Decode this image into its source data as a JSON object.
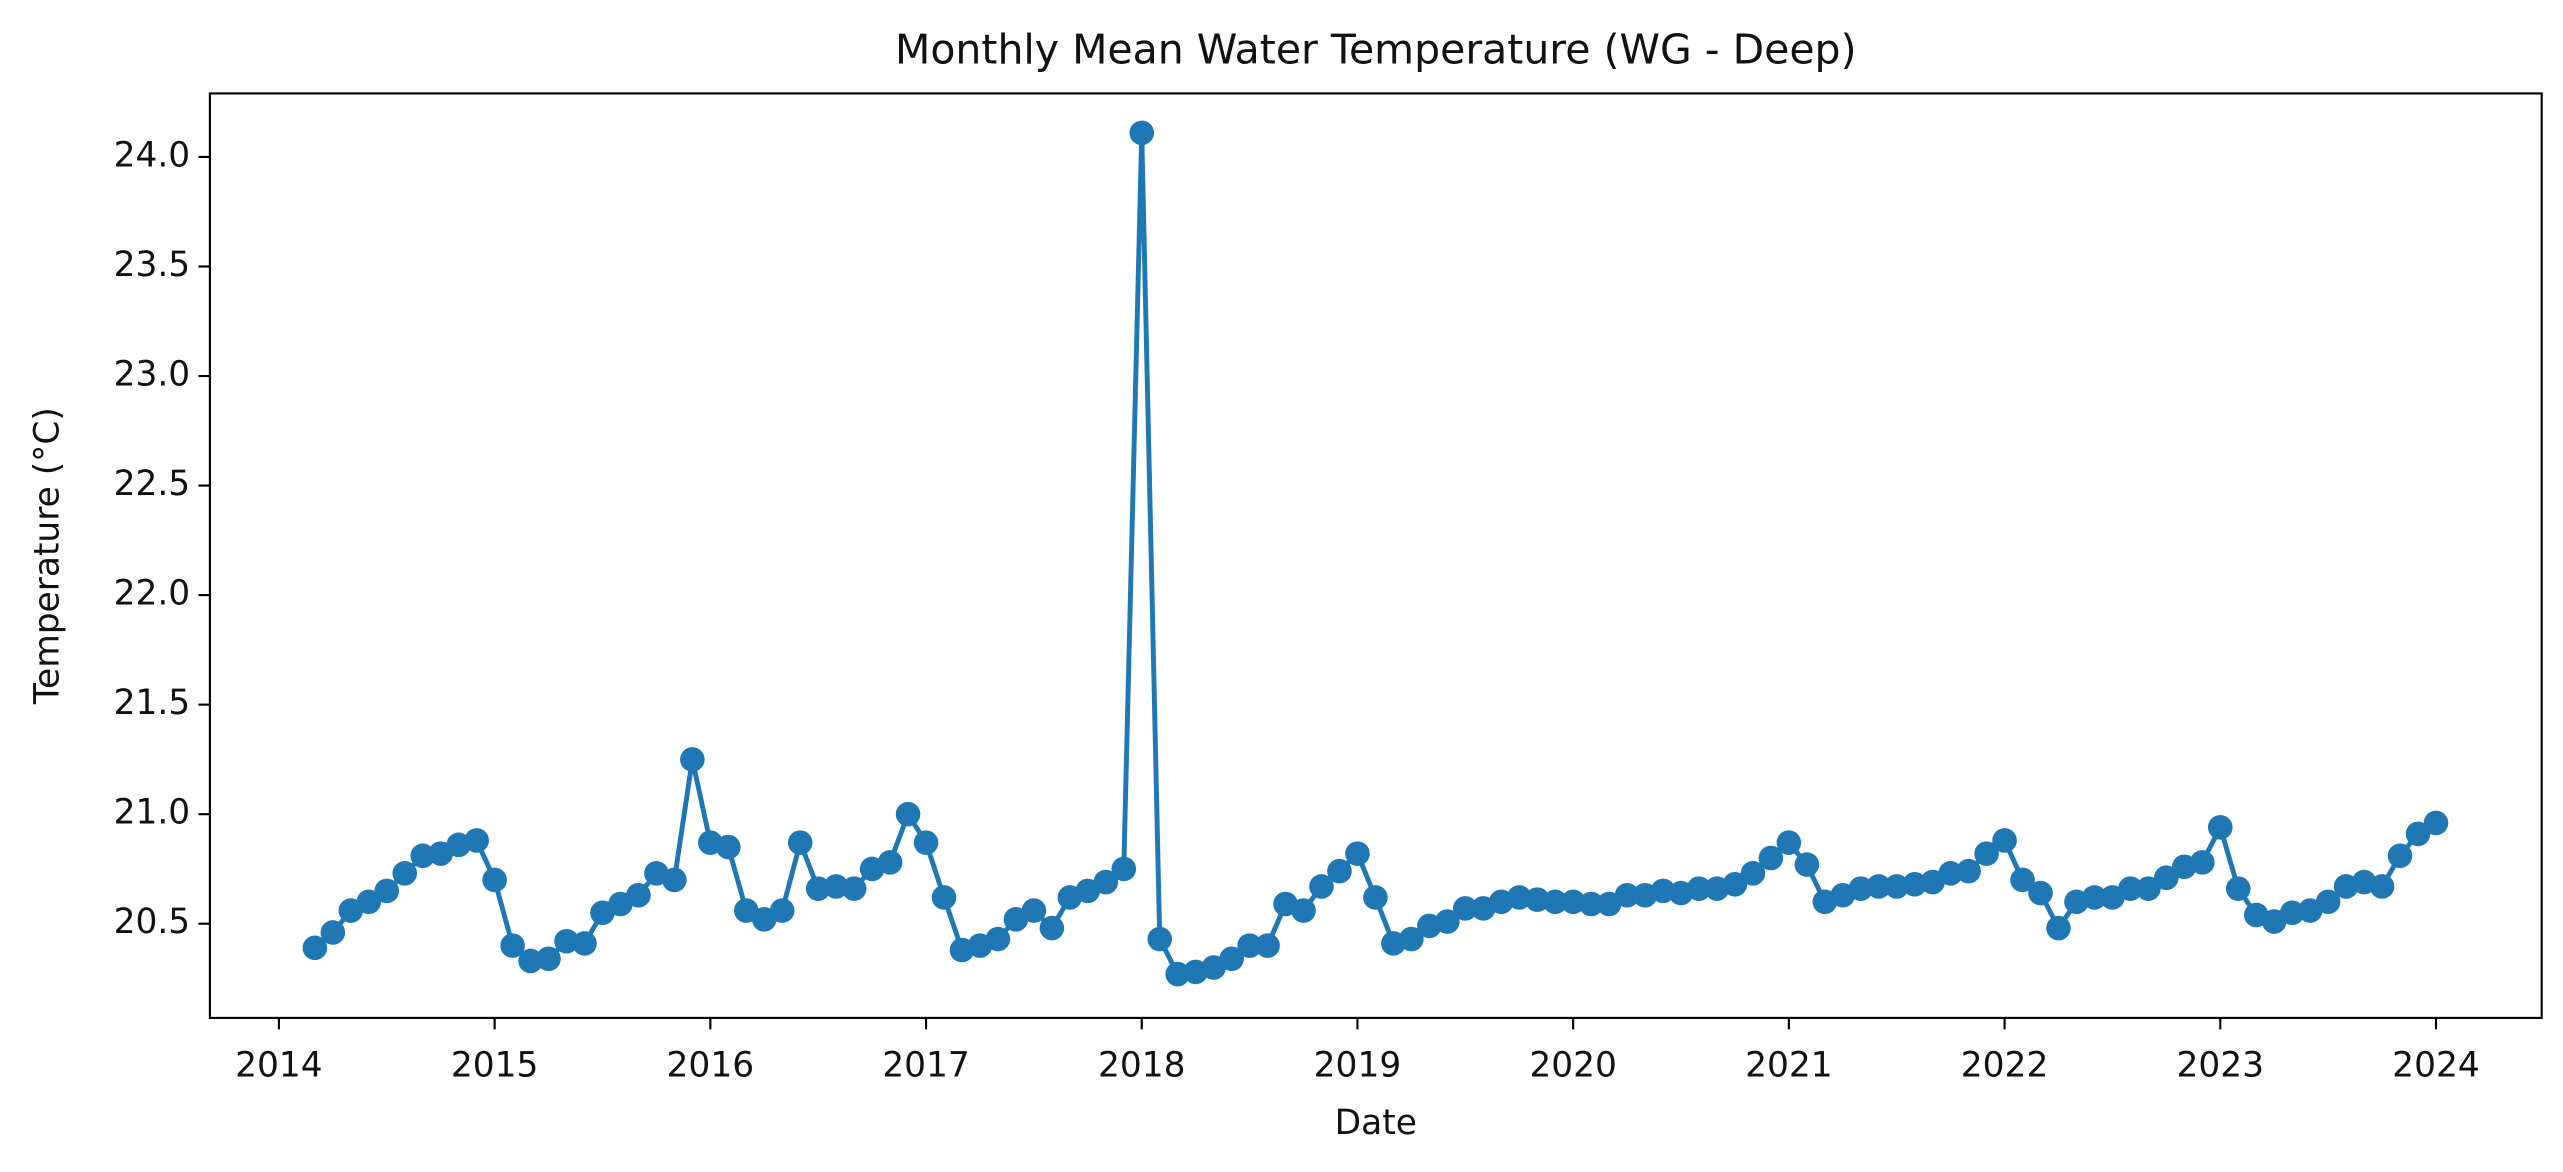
{
  "chart_data": {
    "type": "line",
    "title": "Monthly Mean Water Temperature (WG - Deep)",
    "x_label": "Date",
    "y_label": "Temperature (°C)",
    "x": [
      "2014-02",
      "2014-03",
      "2014-04",
      "2014-05",
      "2014-06",
      "2014-07",
      "2014-08",
      "2014-09",
      "2014-10",
      "2014-11",
      "2014-12",
      "2015-01",
      "2015-02",
      "2015-03",
      "2015-04",
      "2015-05",
      "2015-06",
      "2015-07",
      "2015-08",
      "2015-09",
      "2015-10",
      "2015-11",
      "2015-12",
      "2016-01",
      "2016-02",
      "2016-03",
      "2016-04",
      "2016-05",
      "2016-06",
      "2016-07",
      "2016-08",
      "2016-09",
      "2016-10",
      "2016-11",
      "2016-12",
      "2017-01",
      "2017-02",
      "2017-03",
      "2017-04",
      "2017-05",
      "2017-06",
      "2017-07",
      "2017-08",
      "2017-09",
      "2017-10",
      "2017-11",
      "2017-12",
      "2018-01",
      "2018-02",
      "2018-03",
      "2018-04",
      "2018-05",
      "2018-06",
      "2018-07",
      "2018-08",
      "2018-09",
      "2018-10",
      "2018-11",
      "2018-12",
      "2019-01",
      "2019-02",
      "2019-03",
      "2019-04",
      "2019-05",
      "2019-06",
      "2019-07",
      "2019-08",
      "2019-09",
      "2019-10",
      "2019-11",
      "2019-12",
      "2020-01",
      "2020-02",
      "2020-03",
      "2020-04",
      "2020-05",
      "2020-06",
      "2020-07",
      "2020-08",
      "2020-09",
      "2020-10",
      "2020-11",
      "2020-12",
      "2021-01",
      "2021-02",
      "2021-03",
      "2021-04",
      "2021-05",
      "2021-06",
      "2021-07",
      "2021-08",
      "2021-09",
      "2021-10",
      "2021-11",
      "2021-12",
      "2022-01",
      "2022-02",
      "2022-03",
      "2022-04",
      "2022-05",
      "2022-06",
      "2022-07",
      "2022-08",
      "2022-09",
      "2022-10",
      "2022-11",
      "2022-12",
      "2023-01",
      "2023-02",
      "2023-03",
      "2023-04",
      "2023-05",
      "2023-06",
      "2023-07",
      "2023-08",
      "2023-09",
      "2023-10",
      "2023-11",
      "2023-12"
    ],
    "series": [
      {
        "color": "#1f77b4",
        "values": [
          20.39,
          20.46,
          20.56,
          20.6,
          20.65,
          20.73,
          20.81,
          20.82,
          20.86,
          20.88,
          20.7,
          20.4,
          20.33,
          20.34,
          20.42,
          20.41,
          20.55,
          20.59,
          20.63,
          20.73,
          20.7,
          21.25,
          20.87,
          20.85,
          20.56,
          20.52,
          20.56,
          20.87,
          20.66,
          20.67,
          20.66,
          20.75,
          20.78,
          21.0,
          20.87,
          20.62,
          20.38,
          20.4,
          20.43,
          20.52,
          20.56,
          20.48,
          20.62,
          20.65,
          20.69,
          20.75,
          24.11,
          20.43,
          20.27,
          20.28,
          20.3,
          20.34,
          20.4,
          20.4,
          20.59,
          20.56,
          20.67,
          20.74,
          20.82,
          20.62,
          20.41,
          20.43,
          20.49,
          20.51,
          20.57,
          20.57,
          20.6,
          20.62,
          20.61,
          20.6,
          20.6,
          20.59,
          20.59,
          20.63,
          20.63,
          20.65,
          20.64,
          20.66,
          20.66,
          20.68,
          20.73,
          20.8,
          20.87,
          20.77,
          20.6,
          20.63,
          20.66,
          20.67,
          20.67,
          20.68,
          20.69,
          20.73,
          20.74,
          20.82,
          20.88,
          20.7,
          20.64,
          20.48,
          20.6,
          20.62,
          20.62,
          20.66,
          20.66,
          20.71,
          20.76,
          20.78,
          20.94,
          20.66,
          20.54,
          20.51,
          20.55,
          20.56,
          20.6,
          20.67,
          20.69,
          20.67,
          20.81,
          20.91,
          20.96
        ]
      }
    ],
    "xlim": [
      2013.68,
      2024.49
    ],
    "xticks": [
      2014,
      2015,
      2016,
      2017,
      2018,
      2019,
      2020,
      2021,
      2022,
      2023,
      2024
    ],
    "ylim": [
      20.07,
      24.29
    ],
    "yticks": [
      20.5,
      {
        "value": 21,
        "label": "21.0"
      },
      21.5,
      {
        "value": 22,
        "label": "22.0"
      },
      22.5,
      {
        "value": 23,
        "label": "23.0"
      },
      23.5,
      {
        "value": 24,
        "label": "24.0"
      }
    ]
  }
}
